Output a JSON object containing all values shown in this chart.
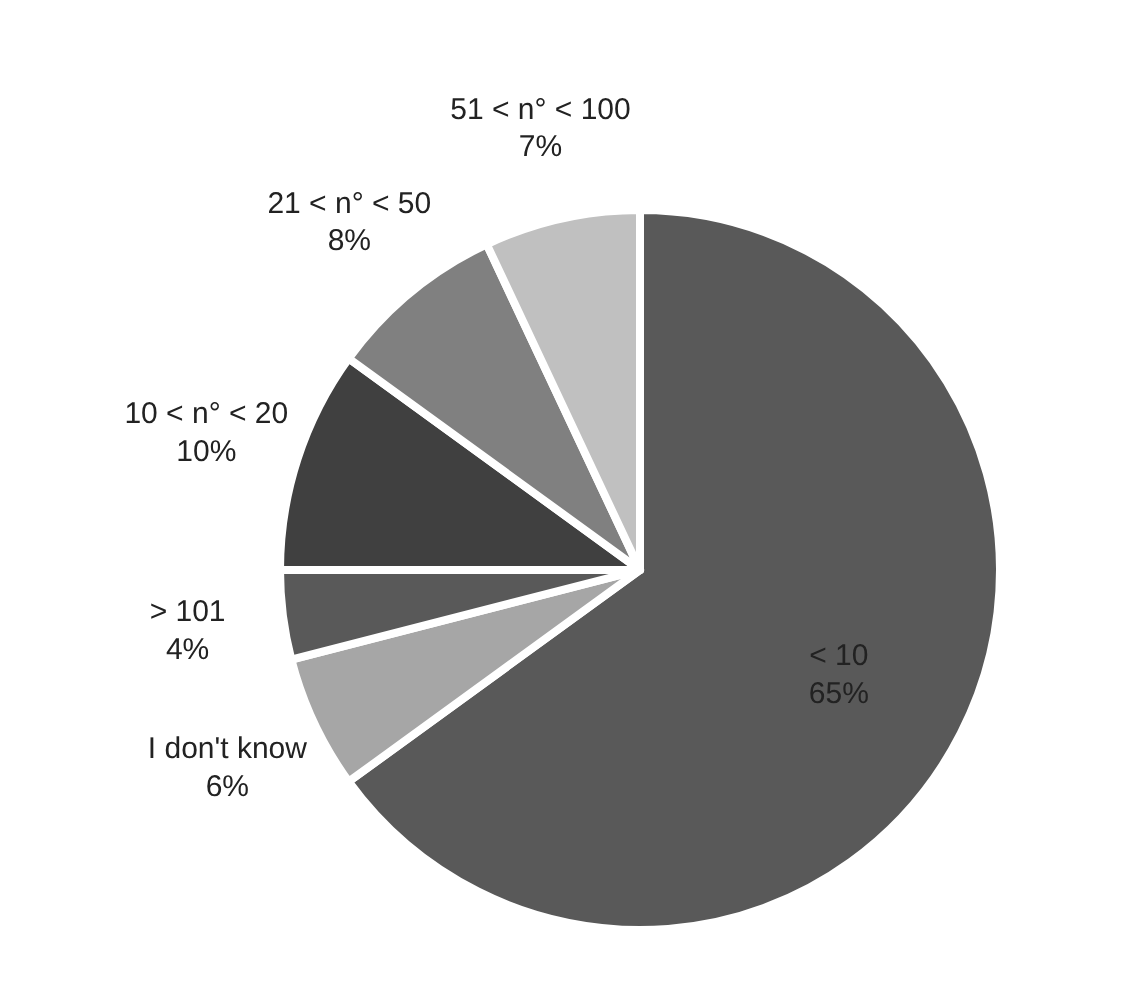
{
  "chart_data": {
    "type": "pie",
    "categories": [
      "< 10",
      "I don't know",
      "> 101",
      "10 < n° < 20",
      "21 < n° < 50",
      "51 < n° < 100"
    ],
    "values": [
      65,
      6,
      4,
      10,
      8,
      7
    ],
    "value_labels": [
      "65%",
      "6%",
      "4%",
      "10%",
      "8%",
      "7%"
    ],
    "colors": [
      "#595959",
      "#a6a6a6",
      "#595959",
      "#404040",
      "#808080",
      "#c0c0c0"
    ]
  }
}
